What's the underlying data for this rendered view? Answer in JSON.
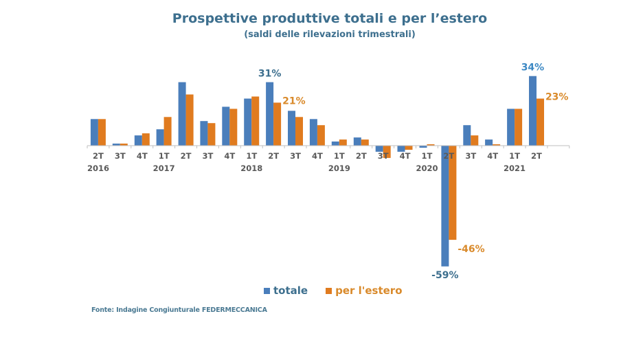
{
  "chart_data": {
    "type": "bar",
    "title": "Prospettive produttive totali e per l’estero",
    "subtitle": "(saldi delle rilevazioni trimestrali)",
    "xlabel": "",
    "ylabel": "",
    "unit": "%",
    "ylim": [
      -60,
      35
    ],
    "grid": false,
    "legend_position": "bottom",
    "categories": [
      "2T",
      "3T",
      "4T",
      "1T",
      "2T",
      "3T",
      "4T",
      "1T",
      "2T",
      "3T",
      "4T",
      "1T",
      "2T",
      "3T",
      "4T",
      "1T",
      "2T",
      "3T",
      "4T",
      "1T",
      "2T"
    ],
    "year_labels": [
      {
        "index": 0,
        "label": "2016"
      },
      {
        "index": 3,
        "label": "2017"
      },
      {
        "index": 7,
        "label": "2018"
      },
      {
        "index": 11,
        "label": "2019"
      },
      {
        "index": 15,
        "label": "2020"
      },
      {
        "index": 19,
        "label": "2021"
      }
    ],
    "series": [
      {
        "name": "totale",
        "color": "#4a7ebb",
        "values": [
          13,
          1,
          5,
          8,
          31,
          12,
          19,
          23,
          31,
          17,
          13,
          2,
          4,
          -3,
          -3,
          -1,
          -59,
          10,
          3,
          18,
          34
        ]
      },
      {
        "name": "per l'estero",
        "color": "#e07b1f",
        "values": [
          13,
          1,
          6,
          14,
          25,
          11,
          18,
          24,
          21,
          14,
          10,
          3,
          3,
          -6,
          -2,
          0,
          -46,
          5,
          0,
          18,
          23
        ]
      }
    ],
    "annotations": [
      {
        "series": 0,
        "index": 8,
        "text": "31%",
        "color": "#3d6f8e"
      },
      {
        "series": 1,
        "index": 8,
        "text": "21%",
        "color": "#d98a2b"
      },
      {
        "series": 0,
        "index": 16,
        "text": "-59%",
        "color": "#3d6f8e"
      },
      {
        "series": 1,
        "index": 16,
        "text": "-46%",
        "color": "#d98a2b"
      },
      {
        "series": 0,
        "index": 20,
        "text": "34%",
        "color": "#3d89c4"
      },
      {
        "series": 1,
        "index": 20,
        "text": "23%",
        "color": "#d98a2b"
      }
    ]
  },
  "legend": {
    "items": [
      {
        "label": "totale",
        "color": "#4a7ebb",
        "text_color": "#3d6f8e"
      },
      {
        "label": "per l'estero",
        "color": "#e07b1f",
        "text_color": "#d98a2b"
      }
    ]
  },
  "source": "Fonte: Indagine Congiunturale FEDERMECCANICA"
}
